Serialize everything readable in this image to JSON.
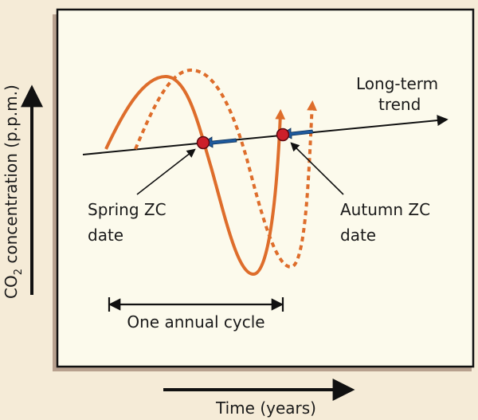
{
  "labels": {
    "y_axis_prefix": "CO",
    "y_axis_subscript": "2",
    "y_axis_suffix": " concentration (p.p.m.)",
    "x_axis": "Time (years)",
    "trend_line1": "Long-term",
    "trend_line2": "trend",
    "spring_line1": "Spring ZC",
    "spring_line2": "date",
    "autumn_line1": "Autumn ZC",
    "autumn_line2": "date",
    "cycle": "One annual cycle"
  },
  "colors": {
    "background": "#F5EBD7",
    "panel": "#FCFAEC",
    "panel_shadow": "#B7A08E",
    "curve": "#DE6D2B",
    "marker": "#CC1F2A",
    "shift_arrow": "#1E5A9E",
    "ink": "#111111"
  }
}
